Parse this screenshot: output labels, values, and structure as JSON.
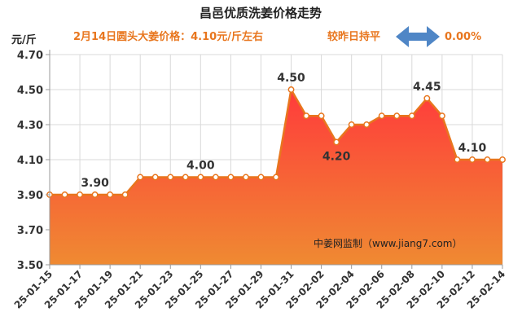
{
  "header": {
    "title": "昌邑优质洗姜价格走势",
    "unit": "元/斤",
    "price_note": "2月14日圆头大姜价格：4.10元/斤左右",
    "compare_label": "较昨日持平",
    "compare_value": "0.00%"
  },
  "watermark": "中姜网监制（www.jiang7.com）",
  "colors": {
    "line": "#e8761e",
    "fill_top": "#ff3b3b",
    "fill_bottom": "#ef8a32",
    "arrow": "#4f86c6",
    "grid": "#d9d9d9"
  },
  "chart_data": {
    "type": "area",
    "title": "昌邑优质洗姜价格走势",
    "ylabel": "元/斤",
    "xlabel": "",
    "ylim": [
      3.5,
      4.7
    ],
    "yticks": [
      "3.50",
      "3.70",
      "3.90",
      "4.10",
      "4.30",
      "4.50",
      "4.70"
    ],
    "x": [
      "25-01-15",
      "25-01-16",
      "25-01-17",
      "25-01-18",
      "25-01-19",
      "25-01-20",
      "25-01-21",
      "25-01-22",
      "25-01-23",
      "25-01-24",
      "25-01-25",
      "25-01-26",
      "25-01-27",
      "25-01-28",
      "25-01-29",
      "25-01-30",
      "25-01-31",
      "25-02-01",
      "25-02-02",
      "25-02-03",
      "25-02-04",
      "25-02-05",
      "25-02-06",
      "25-02-07",
      "25-02-08",
      "25-02-09",
      "25-02-10",
      "25-02-11",
      "25-02-12",
      "25-02-13",
      "25-02-14"
    ],
    "xtick_labels": [
      "25-01-15",
      "25-01-17",
      "25-01-19",
      "25-01-21",
      "25-01-23",
      "25-01-25",
      "25-01-27",
      "25-01-29",
      "25-01-31",
      "25-02-02",
      "25-02-04",
      "25-02-06",
      "25-02-08",
      "25-02-10",
      "25-02-12",
      "25-02-14"
    ],
    "values": [
      3.9,
      3.9,
      3.9,
      3.9,
      3.9,
      3.9,
      4.0,
      4.0,
      4.0,
      4.0,
      4.0,
      4.0,
      4.0,
      4.0,
      4.0,
      4.0,
      4.5,
      4.35,
      4.35,
      4.2,
      4.3,
      4.3,
      4.35,
      4.35,
      4.35,
      4.45,
      4.35,
      4.1,
      4.1,
      4.1,
      4.1
    ],
    "annotations": [
      {
        "index": 3,
        "text": "3.90"
      },
      {
        "index": 10,
        "text": "4.00"
      },
      {
        "index": 16,
        "text": "4.50"
      },
      {
        "index": 19,
        "text": "4.20"
      },
      {
        "index": 25,
        "text": "4.45"
      },
      {
        "index": 28,
        "text": "4.10"
      }
    ],
    "grid": true,
    "legend": "none"
  }
}
